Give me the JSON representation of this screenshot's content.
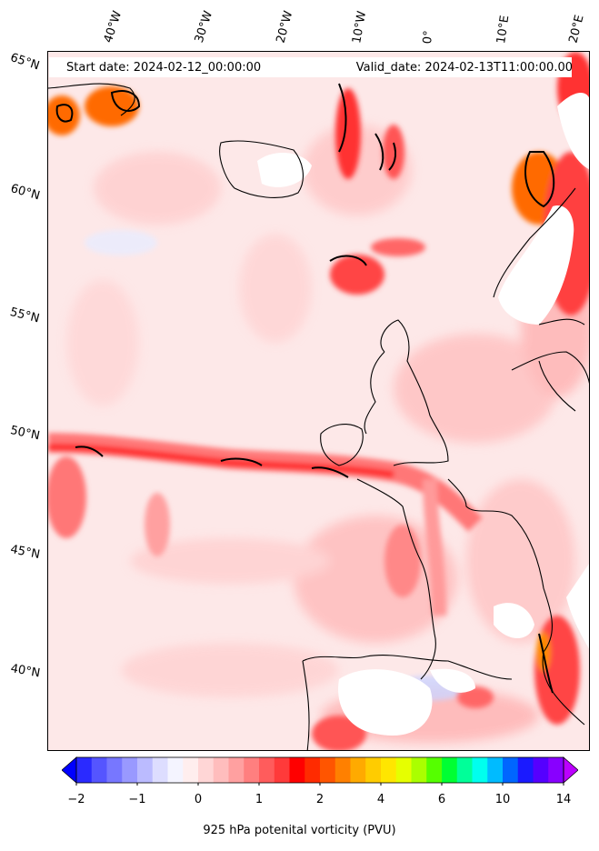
{
  "header": {
    "start_date": "Start date: 2024-02-12_00:00:00",
    "valid_date": "Valid_date: 2024-02-13T11:00:00.00"
  },
  "longitude_labels": [
    "40°W",
    "30°W",
    "20°W",
    "10°W",
    "0°",
    "10°E",
    "20°E"
  ],
  "latitude_labels": [
    "65°N",
    "60°N",
    "55°N",
    "50°N",
    "45°N",
    "40°N"
  ],
  "colorbar": {
    "label": "925 hPa potenital vorticity (PVU)",
    "tick_labels": [
      "−2",
      "−1",
      "0",
      "1",
      "2",
      "4",
      "6",
      "10",
      "14"
    ],
    "colors": [
      "#0000ff",
      "#2a2aff",
      "#5555ff",
      "#7777ff",
      "#9999ff",
      "#bbbbff",
      "#ddddff",
      "#f4f4ff",
      "#ffeeee",
      "#ffd6d6",
      "#ffbdbd",
      "#ffa0a0",
      "#ff7f7f",
      "#ff5c5c",
      "#ff3a3a",
      "#ff0000",
      "#ff2b00",
      "#ff5500",
      "#ff8000",
      "#ffaa00",
      "#ffcc00",
      "#ffe600",
      "#e6ff00",
      "#aaff00",
      "#55ff00",
      "#00ff33",
      "#00ff99",
      "#00ffee",
      "#00bbff",
      "#0066ff",
      "#1a1aff",
      "#5500ff",
      "#8800ff",
      "#bb00ff"
    ]
  }
}
